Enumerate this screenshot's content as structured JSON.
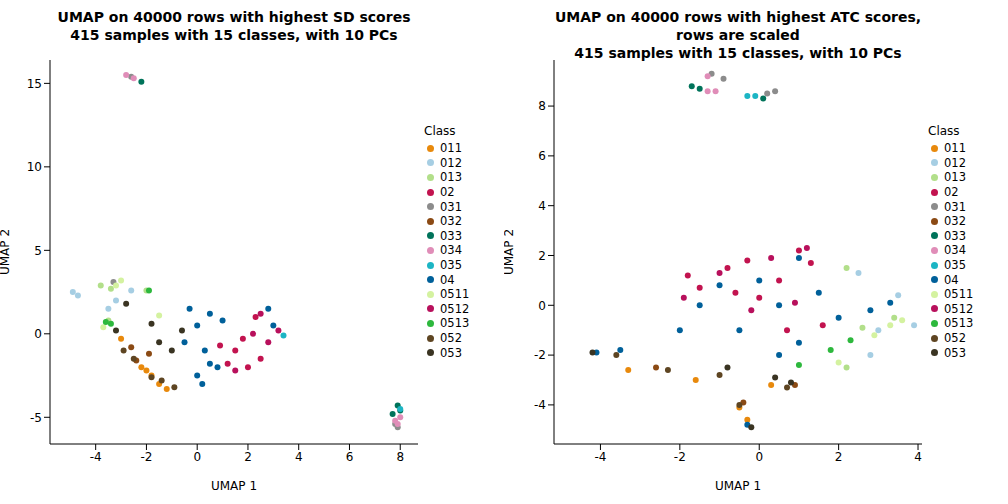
{
  "chart_data": [
    {
      "type": "scatter",
      "title": "UMAP on 40000 rows with highest SD scores\n415 samples with 15 classes, with 10 PCs",
      "x_label": "UMAP 1",
      "y_label": "UMAP 2",
      "legend": "right",
      "legend_title": "Class",
      "marker": "circle",
      "xlim": [
        -5.8,
        8.7
      ],
      "xticks": [
        -4,
        -2,
        0,
        2,
        4,
        6,
        8
      ],
      "ylim": [
        -6.6,
        16.4
      ],
      "yticks": [
        -5,
        0,
        5,
        10,
        15
      ],
      "series": [
        {
          "name": "011",
          "color": "#E8890C",
          "values": [
            [
              -2,
              -2.2
            ],
            [
              -1.8,
              -2.5
            ],
            [
              -1.5,
              -3
            ],
            [
              -1.2,
              -3.3
            ],
            [
              -3,
              -0.3
            ],
            [
              -2.2,
              -2
            ]
          ]
        },
        {
          "name": "012",
          "color": "#A6CEE3",
          "values": [
            [
              -4.9,
              2.5
            ],
            [
              -4.7,
              2.3
            ],
            [
              -3.2,
              2
            ],
            [
              -2.6,
              2.6
            ],
            [
              -3.5,
              1.5
            ]
          ]
        },
        {
          "name": "013",
          "color": "#B2DF8A",
          "values": [
            [
              -3.8,
              2.9
            ],
            [
              -3.4,
              2.7
            ],
            [
              -2,
              2.6
            ],
            [
              -3.5,
              0.8
            ]
          ]
        },
        {
          "name": "02",
          "color": "#C2134F",
          "values": [
            [
              1.5,
              -1
            ],
            [
              2,
              -2
            ],
            [
              1.8,
              -0.3
            ],
            [
              2.3,
              1
            ],
            [
              2.5,
              -1.5
            ],
            [
              1.2,
              -1.8
            ],
            [
              0.9,
              -0.7
            ]
          ]
        },
        {
          "name": "031",
          "color": "#8C8C8C",
          "values": [
            [
              -2.6,
              15.4
            ],
            [
              7.8,
              -5.4
            ],
            [
              7.9,
              -5.6
            ],
            [
              -3.3,
              3.1
            ]
          ]
        },
        {
          "name": "032",
          "color": "#8B4A14",
          "values": [
            [
              -2.4,
              -1.6
            ],
            [
              -1.9,
              -1.2
            ],
            [
              -2.6,
              -0.8
            ]
          ]
        },
        {
          "name": "033",
          "color": "#00735A",
          "values": [
            [
              -2.2,
              15.1
            ],
            [
              8,
              -4.6
            ],
            [
              7.9,
              -4.3
            ],
            [
              7.7,
              -4.8
            ]
          ]
        },
        {
          "name": "034",
          "color": "#E08DB8",
          "values": [
            [
              -2.8,
              15.5
            ],
            [
              -2.5,
              15.3
            ],
            [
              7.8,
              -5.2
            ],
            [
              8,
              -5
            ],
            [
              7.9,
              -5.4
            ]
          ]
        },
        {
          "name": "035",
          "color": "#1CB5C4",
          "values": [
            [
              3.4,
              -0.1
            ],
            [
              8,
              -4.5
            ]
          ]
        },
        {
          "name": "04",
          "color": "#00609A",
          "values": [
            [
              -0.5,
              -0.5
            ],
            [
              0,
              0.5
            ],
            [
              0.3,
              -1
            ],
            [
              0.5,
              1.2
            ],
            [
              0.8,
              -2
            ],
            [
              0.2,
              -3
            ],
            [
              -0.3,
              1.5
            ],
            [
              1,
              0.8
            ],
            [
              2.8,
              1.5
            ],
            [
              3,
              0.5
            ],
            [
              0.5,
              -1.8
            ],
            [
              0,
              -2.5
            ]
          ]
        },
        {
          "name": "0511",
          "color": "#D4F2A0",
          "values": [
            [
              -3.7,
              0.4
            ],
            [
              -3,
              3.2
            ],
            [
              -3.2,
              2.9
            ],
            [
              -1.5,
              1.1
            ]
          ]
        },
        {
          "name": "0512",
          "color": "#B8105C",
          "values": [
            [
              2.2,
              0
            ],
            [
              2.5,
              1.2
            ],
            [
              3.2,
              0.2
            ],
            [
              1.5,
              -2.2
            ],
            [
              2.8,
              -0.5
            ]
          ]
        },
        {
          "name": "0513",
          "color": "#2DB83D",
          "values": [
            [
              -3.6,
              0.7
            ],
            [
              -1.9,
              2.6
            ],
            [
              -3.4,
              0.6
            ]
          ]
        },
        {
          "name": "052",
          "color": "#5E4522",
          "values": [
            [
              -2.5,
              -1.5
            ],
            [
              -1.8,
              -2.6
            ],
            [
              -1.4,
              -2.8
            ],
            [
              -2.9,
              -1
            ],
            [
              -0.9,
              -3.2
            ]
          ]
        },
        {
          "name": "053",
          "color": "#3A3422",
          "values": [
            [
              -1.8,
              0.6
            ],
            [
              -1.5,
              -0.5
            ],
            [
              -1,
              -1
            ],
            [
              -0.6,
              0.2
            ],
            [
              -2.8,
              1.8
            ],
            [
              -3.2,
              0.2
            ]
          ]
        }
      ]
    },
    {
      "type": "scatter",
      "title": "UMAP on 40000 rows with highest ATC scores, rows are scaled\n415 samples with 15 classes, with 10 PCs",
      "x_label": "UMAP 1",
      "y_label": "UMAP 2",
      "legend": "right",
      "legend_title": "Class",
      "marker": "circle",
      "xlim": [
        -5.17,
        4.1
      ],
      "xticks": [
        -4,
        -2,
        0,
        2,
        4
      ],
      "ylim": [
        -5.57,
        9.85
      ],
      "yticks": [
        -4,
        -2,
        0,
        2,
        4,
        6,
        8
      ],
      "series": [
        {
          "name": "011",
          "color": "#E8890C",
          "values": [
            [
              -3.3,
              -2.6
            ],
            [
              -1.6,
              -3
            ],
            [
              -0.5,
              -4.1
            ],
            [
              -0.3,
              -4.6
            ],
            [
              0.3,
              -3.2
            ]
          ]
        },
        {
          "name": "012",
          "color": "#A6CEE3",
          "values": [
            [
              2.5,
              1.3
            ],
            [
              3.5,
              0.4
            ],
            [
              3.9,
              -0.8
            ],
            [
              3,
              -1
            ],
            [
              2.8,
              -2
            ]
          ]
        },
        {
          "name": "013",
          "color": "#B2DF8A",
          "values": [
            [
              2.6,
              -0.9
            ],
            [
              2.2,
              -2.5
            ],
            [
              2.2,
              1.5
            ],
            [
              3.4,
              -0.5
            ]
          ]
        },
        {
          "name": "02",
          "color": "#C2134F",
          "values": [
            [
              -1.8,
              1.2
            ],
            [
              -1.5,
              0.7
            ],
            [
              -0.8,
              1.5
            ],
            [
              -0.3,
              1.8
            ],
            [
              0,
              0.3
            ],
            [
              0.5,
              1
            ],
            [
              1,
              2.2
            ],
            [
              1.3,
              1.7
            ],
            [
              0.7,
              -1
            ],
            [
              -0.6,
              0.5
            ],
            [
              1.6,
              -0.8
            ]
          ]
        },
        {
          "name": "031",
          "color": "#8C8C8C",
          "values": [
            [
              -1.2,
              9.3
            ],
            [
              0.2,
              8.5
            ],
            [
              0.4,
              8.6
            ],
            [
              -0.9,
              9.1
            ]
          ]
        },
        {
          "name": "032",
          "color": "#8B4A14",
          "values": [
            [
              -0.4,
              -3.9
            ],
            [
              0.9,
              -3.2
            ],
            [
              -2.6,
              -2.5
            ]
          ]
        },
        {
          "name": "033",
          "color": "#00735A",
          "values": [
            [
              -1.7,
              8.8
            ],
            [
              -1.5,
              8.7
            ],
            [
              0.1,
              8.3
            ]
          ]
        },
        {
          "name": "034",
          "color": "#E08DB8",
          "values": [
            [
              -1.3,
              9.2
            ],
            [
              -1.1,
              8.6
            ],
            [
              -1.3,
              8.6
            ]
          ]
        },
        {
          "name": "035",
          "color": "#1CB5C4",
          "values": [
            [
              -0.3,
              8.4
            ],
            [
              -0.1,
              8.4
            ]
          ]
        },
        {
          "name": "04",
          "color": "#00609A",
          "values": [
            [
              -4.1,
              -1.9
            ],
            [
              -3.5,
              -1.8
            ],
            [
              -2,
              -1
            ],
            [
              -1.5,
              0
            ],
            [
              -0.5,
              -1
            ],
            [
              0,
              1
            ],
            [
              0.5,
              0
            ],
            [
              1,
              1.9
            ],
            [
              1.5,
              0.5
            ],
            [
              2,
              -0.5
            ],
            [
              2.8,
              -0.2
            ],
            [
              3.3,
              0.1
            ],
            [
              -0.3,
              -4.8
            ],
            [
              0.5,
              -2
            ],
            [
              -1,
              0.8
            ],
            [
              1,
              -1.5
            ]
          ]
        },
        {
          "name": "0511",
          "color": "#D4F2A0",
          "values": [
            [
              3.3,
              -0.8
            ],
            [
              3.6,
              -0.6
            ],
            [
              2.9,
              -1.2
            ],
            [
              2,
              -2.3
            ]
          ]
        },
        {
          "name": "0512",
          "color": "#B8105C",
          "values": [
            [
              -1.9,
              0.3
            ],
            [
              -1,
              1.3
            ],
            [
              0.3,
              1.9
            ],
            [
              1.2,
              2.3
            ],
            [
              -0.2,
              -0.2
            ],
            [
              0.9,
              0.1
            ]
          ]
        },
        {
          "name": "0513",
          "color": "#2DB83D",
          "values": [
            [
              1.8,
              -1.8
            ],
            [
              2.3,
              -1.4
            ],
            [
              1,
              -2.4
            ]
          ]
        },
        {
          "name": "052",
          "color": "#5E4522",
          "values": [
            [
              -0.5,
              -4
            ],
            [
              0.7,
              -3.3
            ],
            [
              -1,
              -2.8
            ],
            [
              -3.6,
              -2
            ],
            [
              -2.3,
              -2.6
            ]
          ]
        },
        {
          "name": "053",
          "color": "#3A3422",
          "values": [
            [
              -0.8,
              -2.5
            ],
            [
              0.8,
              -3.1
            ],
            [
              -0.2,
              -4.9
            ],
            [
              0.4,
              -2.9
            ],
            [
              -4.2,
              -1.9
            ]
          ]
        }
      ]
    }
  ]
}
